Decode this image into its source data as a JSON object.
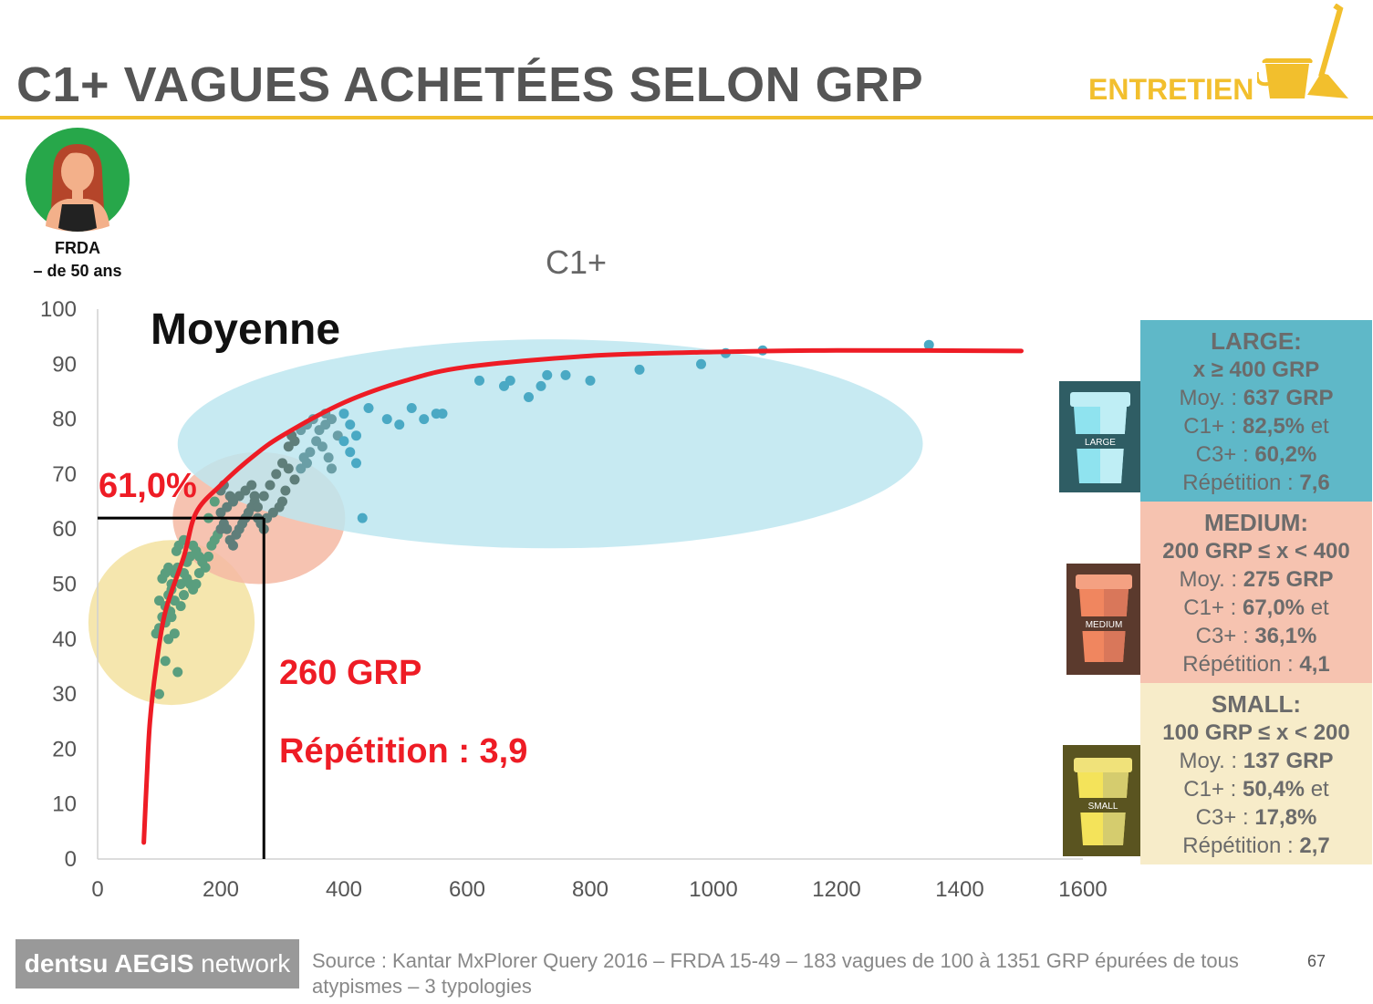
{
  "header": {
    "title": "C1+ VAGUES ACHETÉES SELON GRP",
    "category": "ENTRETIEN",
    "accent_color": "#f2bf2d",
    "category_icon": "bucket-broom-icon"
  },
  "persona": {
    "icon": "woman-avatar-icon",
    "line1": "FRDA",
    "line2": "– de 50 ans"
  },
  "annotations": {
    "ellipse_label": "C1+",
    "average_label": "Moyenne",
    "avg_reach": "61,0%",
    "avg_grp": "260 GRP",
    "avg_repetition": "Répétition : 3,9"
  },
  "chart_data": {
    "type": "scatter",
    "xlim": [
      0,
      1600
    ],
    "ylim": [
      0,
      100
    ],
    "x_ticks": [
      "0",
      "200",
      "400",
      "600",
      "800",
      "1000",
      "1200",
      "1400",
      "1600"
    ],
    "y_ticks": [
      "0",
      "10",
      "20",
      "30",
      "40",
      "50",
      "60",
      "70",
      "80",
      "90",
      "100"
    ],
    "reference": {
      "x": 270,
      "y": 62
    },
    "curve": [
      [
        75,
        3
      ],
      [
        80,
        15
      ],
      [
        85,
        25
      ],
      [
        95,
        35
      ],
      [
        110,
        45
      ],
      [
        140,
        55
      ],
      [
        160,
        63
      ],
      [
        200,
        68
      ],
      [
        250,
        73
      ],
      [
        300,
        77
      ],
      [
        400,
        83
      ],
      [
        500,
        87
      ],
      [
        600,
        89.5
      ],
      [
        800,
        91.5
      ],
      [
        1000,
        92.2
      ],
      [
        1200,
        92.5
      ],
      [
        1500,
        92.4
      ]
    ],
    "clusters": [
      {
        "name": "SMALL",
        "color": "#f3e2a0",
        "cx": 120,
        "cy": 43,
        "rx": 135,
        "ry": 15
      },
      {
        "name": "MEDIUM",
        "color": "#f4b9a3",
        "cx": 262,
        "cy": 62,
        "rx": 140,
        "ry": 12
      },
      {
        "name": "LARGE",
        "color": "#bde6f0",
        "cx": 735,
        "cy": 75.5,
        "rx": 605,
        "ry": 19
      }
    ],
    "points": [
      [
        100,
        30
      ],
      [
        110,
        36
      ],
      [
        130,
        34
      ],
      [
        95,
        41
      ],
      [
        100,
        42
      ],
      [
        105,
        44
      ],
      [
        110,
        46
      ],
      [
        100,
        47
      ],
      [
        115,
        48
      ],
      [
        120,
        50
      ],
      [
        105,
        51
      ],
      [
        110,
        52
      ],
      [
        125,
        52
      ],
      [
        115,
        53
      ],
      [
        130,
        53
      ],
      [
        120,
        49
      ],
      [
        125,
        47
      ],
      [
        110,
        43
      ],
      [
        118,
        45
      ],
      [
        135,
        50
      ],
      [
        140,
        52
      ],
      [
        145,
        54
      ],
      [
        150,
        55
      ],
      [
        128,
        56
      ],
      [
        132,
        57
      ],
      [
        140,
        58
      ],
      [
        155,
        57
      ],
      [
        160,
        56
      ],
      [
        165,
        55
      ],
      [
        170,
        54
      ],
      [
        175,
        53
      ],
      [
        145,
        51
      ],
      [
        150,
        50
      ],
      [
        155,
        49
      ],
      [
        160,
        50
      ],
      [
        165,
        52
      ],
      [
        140,
        48
      ],
      [
        135,
        46
      ],
      [
        120,
        44
      ],
      [
        115,
        40
      ],
      [
        125,
        41
      ],
      [
        180,
        55
      ],
      [
        185,
        57
      ],
      [
        190,
        58
      ],
      [
        195,
        59
      ],
      [
        200,
        60
      ],
      [
        205,
        61
      ],
      [
        210,
        60
      ],
      [
        215,
        58
      ],
      [
        220,
        57
      ],
      [
        225,
        59
      ],
      [
        230,
        60
      ],
      [
        235,
        61
      ],
      [
        240,
        62
      ],
      [
        245,
        63
      ],
      [
        250,
        64
      ],
      [
        255,
        65
      ],
      [
        260,
        62
      ],
      [
        265,
        61
      ],
      [
        270,
        60
      ],
      [
        200,
        63
      ],
      [
        210,
        64
      ],
      [
        215,
        66
      ],
      [
        220,
        65
      ],
      [
        230,
        66
      ],
      [
        240,
        67
      ],
      [
        250,
        68
      ],
      [
        255,
        66
      ],
      [
        260,
        64
      ],
      [
        270,
        66
      ],
      [
        280,
        68
      ],
      [
        290,
        70
      ],
      [
        300,
        72
      ],
      [
        310,
        71
      ],
      [
        320,
        69
      ],
      [
        300,
        65
      ],
      [
        295,
        64
      ],
      [
        305,
        67
      ],
      [
        285,
        63
      ],
      [
        275,
        62
      ],
      [
        180,
        62
      ],
      [
        190,
        65
      ],
      [
        200,
        67
      ],
      [
        205,
        68
      ],
      [
        310,
        75
      ],
      [
        315,
        77
      ],
      [
        320,
        76
      ],
      [
        330,
        78
      ],
      [
        340,
        79
      ],
      [
        350,
        80
      ],
      [
        360,
        78
      ],
      [
        370,
        79
      ],
      [
        380,
        80
      ],
      [
        390,
        77
      ],
      [
        400,
        76
      ],
      [
        410,
        74
      ],
      [
        420,
        72
      ],
      [
        380,
        71
      ],
      [
        375,
        73
      ],
      [
        365,
        75
      ],
      [
        355,
        76
      ],
      [
        345,
        74
      ],
      [
        335,
        73
      ],
      [
        330,
        71
      ],
      [
        340,
        72
      ],
      [
        370,
        81
      ],
      [
        400,
        81
      ],
      [
        410,
        79
      ],
      [
        420,
        77
      ],
      [
        430,
        62
      ],
      [
        440,
        82
      ],
      [
        470,
        80
      ],
      [
        490,
        79
      ],
      [
        510,
        82
      ],
      [
        530,
        80
      ],
      [
        550,
        81
      ],
      [
        560,
        81
      ],
      [
        620,
        87
      ],
      [
        660,
        86
      ],
      [
        670,
        87
      ],
      [
        700,
        84
      ],
      [
        720,
        86
      ],
      [
        730,
        88
      ],
      [
        760,
        88
      ],
      [
        800,
        87
      ],
      [
        880,
        89
      ],
      [
        980,
        90
      ],
      [
        1020,
        92
      ],
      [
        1080,
        92.5
      ],
      [
        1350,
        93.5
      ]
    ]
  },
  "panels": [
    {
      "title": "LARGE:",
      "range": "x ≥ 400 GRP",
      "moy_label": "Moy. : ",
      "moy_value": "637 GRP",
      "c1_label": "C1+ : ",
      "c1_value": "82,5%",
      "et": " et",
      "c3_label": "C3+ : ",
      "c3_value": "60,2%",
      "rep_label": "Répétition : ",
      "rep_value": "7,6",
      "cup": "large-cup-icon",
      "cup_text": "LARGE"
    },
    {
      "title": "MEDIUM:",
      "range": "200 GRP ≤ x < 400",
      "moy_label": "Moy. : ",
      "moy_value": "275 GRP",
      "c1_label": "C1+ : ",
      "c1_value": "67,0%",
      "et": " et",
      "c3_label": "C3+ : ",
      "c3_value": "36,1%",
      "rep_label": "Répétition : ",
      "rep_value": "4,1",
      "cup": "medium-cup-icon",
      "cup_text": "MEDIUM"
    },
    {
      "title": "SMALL:",
      "range": "100 GRP ≤ x < 200",
      "moy_label": "Moy. : ",
      "moy_value": "137 GRP",
      "c1_label": "C1+ : ",
      "c1_value": "50,4%",
      "et": " et",
      "c3_label": "C3+ : ",
      "c3_value": "17,8%",
      "rep_label": "Répétition : ",
      "rep_value": "2,7",
      "cup": "small-cup-icon",
      "cup_text": "SMALL"
    }
  ],
  "footer": {
    "logo_bold": "dentsu",
    "logo_mid": " AEGIS",
    "logo_tail": " network",
    "source": "Source : Kantar MxPlorer Query 2016 – FRDA 15-49 – 183 vagues de 100 à 1351 GRP épurées de tous atypismes – 3 typologies",
    "page": "67"
  }
}
